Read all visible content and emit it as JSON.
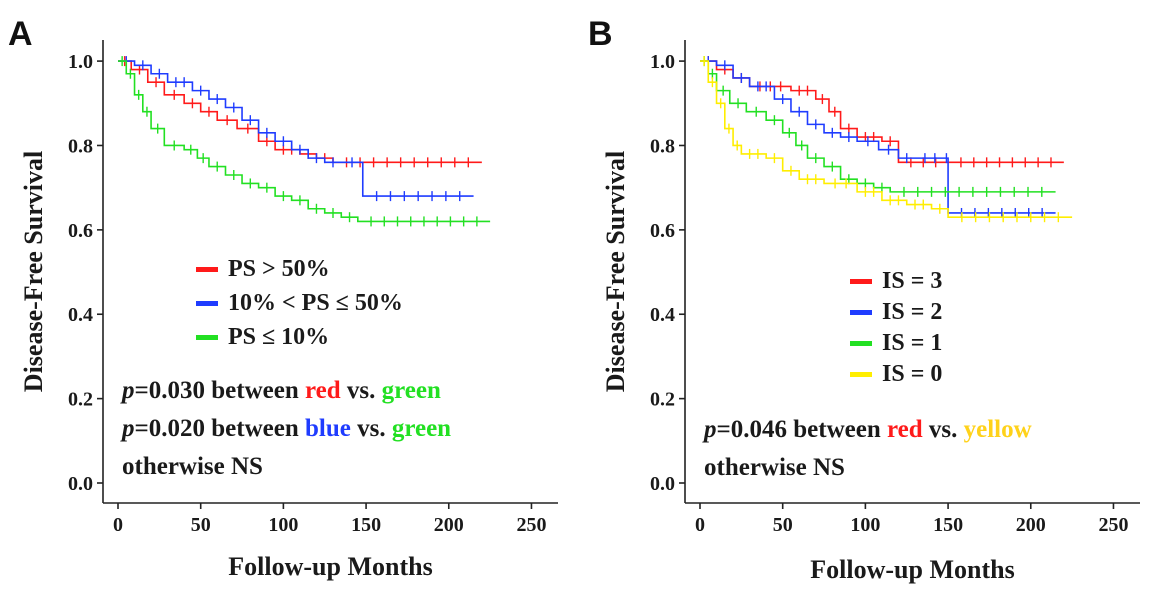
{
  "colors": {
    "red": "#ff1a1a",
    "blue": "#1f3cff",
    "green": "#22e022",
    "yellow": "#ffee00",
    "yellow_text": "#ffd21a"
  },
  "chart_data": [
    {
      "type": "line",
      "subtype": "kaplan-meier",
      "panel_label": "A",
      "xlabel": "Follow-up Months",
      "ylabel": "Disease-Free Survival",
      "xlim": [
        0,
        260
      ],
      "ylim": [
        0,
        1.05
      ],
      "xticks": [
        "0",
        "50",
        "100",
        "150",
        "200",
        "250"
      ],
      "yticks": [
        "0.0",
        "0.2",
        "0.4",
        "0.6",
        "0.8",
        "1.0"
      ],
      "legend_position": "center",
      "series": [
        {
          "name": "PS > 50%",
          "color": "red",
          "x": [
            0,
            8,
            18,
            28,
            40,
            50,
            60,
            72,
            85,
            95,
            110,
            120,
            130,
            220
          ],
          "y": [
            1.0,
            0.98,
            0.95,
            0.92,
            0.9,
            0.88,
            0.86,
            0.84,
            0.81,
            0.79,
            0.78,
            0.77,
            0.76,
            0.76
          ]
        },
        {
          "name": "10% < PS ≤ 50%",
          "color": "blue",
          "x": [
            0,
            10,
            20,
            30,
            45,
            55,
            65,
            75,
            85,
            95,
            105,
            115,
            125,
            135,
            148,
            215
          ],
          "y": [
            1.0,
            0.99,
            0.97,
            0.95,
            0.93,
            0.91,
            0.89,
            0.86,
            0.83,
            0.81,
            0.79,
            0.77,
            0.76,
            0.76,
            0.68,
            0.68
          ]
        },
        {
          "name": "PS ≤ 10%",
          "color": "green",
          "x": [
            0,
            5,
            10,
            15,
            20,
            28,
            40,
            48,
            55,
            65,
            75,
            85,
            95,
            105,
            115,
            125,
            135,
            145,
            225
          ],
          "y": [
            1.0,
            0.97,
            0.92,
            0.88,
            0.84,
            0.8,
            0.79,
            0.77,
            0.75,
            0.73,
            0.71,
            0.7,
            0.68,
            0.67,
            0.65,
            0.64,
            0.63,
            0.62,
            0.62
          ]
        }
      ],
      "legend": [
        "PS > 50%",
        "10% < PS ≤ 50%",
        "PS ≤ 10%"
      ],
      "annotations": [
        {
          "p": "p",
          "rest": "=0.030 between ",
          "c1": "red",
          "c1_color": "red",
          "vs": " vs. ",
          "c2": "green",
          "c2_color": "green"
        },
        {
          "p": "p",
          "rest": "=0.020 between ",
          "c1": "blue",
          "c1_color": "blue",
          "vs": " vs. ",
          "c2": "green",
          "c2_color": "green"
        }
      ],
      "note": "otherwise NS"
    },
    {
      "type": "line",
      "subtype": "kaplan-meier",
      "panel_label": "B",
      "xlabel": "Follow-up Months",
      "ylabel": "Disease-Free Survival",
      "xlim": [
        0,
        260
      ],
      "ylim": [
        0,
        1.05
      ],
      "xticks": [
        "0",
        "50",
        "100",
        "150",
        "200",
        "250"
      ],
      "yticks": [
        "0.0",
        "0.2",
        "0.4",
        "0.6",
        "0.8",
        "1.0"
      ],
      "legend_position": "center",
      "series": [
        {
          "name": "IS = 3",
          "color": "red",
          "x": [
            0,
            10,
            20,
            30,
            55,
            70,
            78,
            85,
            95,
            110,
            120,
            150,
            220
          ],
          "y": [
            1.0,
            0.98,
            0.96,
            0.94,
            0.93,
            0.91,
            0.88,
            0.84,
            0.82,
            0.81,
            0.76,
            0.76,
            0.76
          ]
        },
        {
          "name": "IS = 2",
          "color": "blue",
          "x": [
            0,
            10,
            20,
            30,
            45,
            55,
            65,
            75,
            85,
            95,
            108,
            120,
            130,
            148,
            150,
            215
          ],
          "y": [
            1.0,
            0.99,
            0.96,
            0.94,
            0.91,
            0.88,
            0.85,
            0.83,
            0.82,
            0.81,
            0.79,
            0.77,
            0.77,
            0.77,
            0.64,
            0.64
          ]
        },
        {
          "name": "IS = 1",
          "color": "green",
          "x": [
            0,
            5,
            10,
            18,
            28,
            40,
            50,
            58,
            65,
            75,
            85,
            95,
            105,
            115,
            215
          ],
          "y": [
            1.0,
            0.97,
            0.93,
            0.9,
            0.88,
            0.86,
            0.83,
            0.8,
            0.77,
            0.75,
            0.72,
            0.71,
            0.7,
            0.69,
            0.69
          ]
        },
        {
          "name": "IS = 0",
          "color": "yellow",
          "x": [
            0,
            5,
            10,
            15,
            20,
            25,
            40,
            50,
            60,
            75,
            95,
            110,
            125,
            140,
            150,
            225
          ],
          "y": [
            1.0,
            0.95,
            0.9,
            0.84,
            0.8,
            0.78,
            0.77,
            0.74,
            0.72,
            0.71,
            0.69,
            0.67,
            0.66,
            0.65,
            0.63,
            0.63
          ]
        }
      ],
      "legend": [
        "IS = 3",
        "IS = 2",
        "IS = 1",
        "IS = 0"
      ],
      "annotations": [
        {
          "p": "p",
          "rest": "=0.046 between ",
          "c1": "red",
          "c1_color": "red",
          "vs": " vs. ",
          "c2": "yellow",
          "c2_color": "yellow_text"
        }
      ],
      "note": "otherwise NS"
    }
  ]
}
